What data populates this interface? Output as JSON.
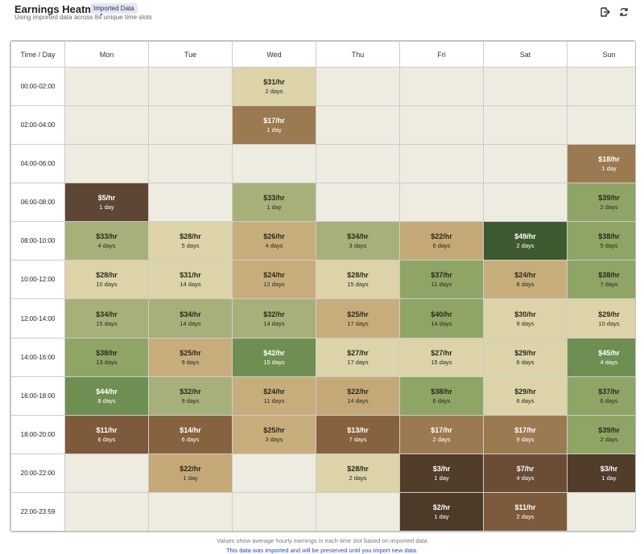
{
  "header": {
    "title": "Earnings Heatmap",
    "badge": "Imported Data",
    "subtitle": "Using imported data across 84 unique time slots"
  },
  "table": {
    "columns": [
      "Time / Day",
      "Mon",
      "Tue",
      "Wed",
      "Thu",
      "Fri",
      "Sat",
      "Sun"
    ],
    "rows": [
      {
        "time": "00:00-02:00",
        "cells": [
          null,
          null,
          {
            "rate": "$31/hr",
            "days": "2 days",
            "color": "#ddd3a8"
          },
          null,
          null,
          null,
          null
        ]
      },
      {
        "time": "02:00-04:00",
        "cells": [
          null,
          null,
          {
            "rate": "$17/hr",
            "days": "1 day",
            "color": "#9b7a52"
          },
          null,
          null,
          null,
          null
        ]
      },
      {
        "time": "04:00-06:00",
        "cells": [
          null,
          null,
          null,
          null,
          null,
          null,
          {
            "rate": "$18/hr",
            "days": "1 day",
            "color": "#9b7a52"
          }
        ]
      },
      {
        "time": "06:00-08:00",
        "cells": [
          {
            "rate": "$5/hr",
            "days": "1 day",
            "color": "#5e4634"
          },
          null,
          {
            "rate": "$33/hr",
            "days": "1 day",
            "color": "#a8b07a"
          },
          null,
          null,
          null,
          {
            "rate": "$39/hr",
            "days": "2 days",
            "color": "#8ea565"
          }
        ]
      },
      {
        "time": "08:00-10:00",
        "cells": [
          {
            "rate": "$33/hr",
            "days": "4 days",
            "color": "#a8b07a"
          },
          {
            "rate": "$28/hr",
            "days": "5 days",
            "color": "#ddd3a8"
          },
          {
            "rate": "$26/hr",
            "days": "4 days",
            "color": "#c8ad7c"
          },
          {
            "rate": "$34/hr",
            "days": "3 days",
            "color": "#a8b07a"
          },
          {
            "rate": "$22/hr",
            "days": "6 days",
            "color": "#c4a878"
          },
          {
            "rate": "$49/hr",
            "days": "2 days",
            "color": "#3e5a30"
          },
          {
            "rate": "$38/hr",
            "days": "5 days",
            "color": "#8ea565"
          }
        ]
      },
      {
        "time": "10:00-12:00",
        "cells": [
          {
            "rate": "$28/hr",
            "days": "10 days",
            "color": "#ddd3a8"
          },
          {
            "rate": "$31/hr",
            "days": "14 days",
            "color": "#ddd3a8"
          },
          {
            "rate": "$24/hr",
            "days": "12 days",
            "color": "#c8ad7c"
          },
          {
            "rate": "$28/hr",
            "days": "15 days",
            "color": "#ddd3a8"
          },
          {
            "rate": "$37/hr",
            "days": "11 days",
            "color": "#8ea565"
          },
          {
            "rate": "$24/hr",
            "days": "8 days",
            "color": "#c8ad7c"
          },
          {
            "rate": "$38/hr",
            "days": "7 days",
            "color": "#8ea565"
          }
        ]
      },
      {
        "time": "12:00-14:00",
        "cells": [
          {
            "rate": "$34/hr",
            "days": "15 days",
            "color": "#a8b07a"
          },
          {
            "rate": "$34/hr",
            "days": "14 days",
            "color": "#a8b07a"
          },
          {
            "rate": "$32/hr",
            "days": "14 days",
            "color": "#a8b07a"
          },
          {
            "rate": "$25/hr",
            "days": "17 days",
            "color": "#c8ad7c"
          },
          {
            "rate": "$40/hr",
            "days": "14 days",
            "color": "#8ea565"
          },
          {
            "rate": "$30/hr",
            "days": "9 days",
            "color": "#ddd3a8"
          },
          {
            "rate": "$29/hr",
            "days": "10 days",
            "color": "#ddd3a8"
          }
        ]
      },
      {
        "time": "14:00-16:00",
        "cells": [
          {
            "rate": "$38/hr",
            "days": "13 days",
            "color": "#8ea565"
          },
          {
            "rate": "$25/hr",
            "days": "9 days",
            "color": "#c8ad7c"
          },
          {
            "rate": "$42/hr",
            "days": "15 days",
            "color": "#6f8f52"
          },
          {
            "rate": "$27/hr",
            "days": "17 days",
            "color": "#ddd3a8"
          },
          {
            "rate": "$27/hr",
            "days": "15 days",
            "color": "#ddd3a8"
          },
          {
            "rate": "$29/hr",
            "days": "6 days",
            "color": "#ddd3a8"
          },
          {
            "rate": "$45/hr",
            "days": "4 days",
            "color": "#6f8f52"
          }
        ]
      },
      {
        "time": "16:00-18:00",
        "cells": [
          {
            "rate": "$44/hr",
            "days": "8 days",
            "color": "#6f8f52"
          },
          {
            "rate": "$32/hr",
            "days": "9 days",
            "color": "#a8b07a"
          },
          {
            "rate": "$24/hr",
            "days": "11 days",
            "color": "#c8ad7c"
          },
          {
            "rate": "$22/hr",
            "days": "14 days",
            "color": "#c4a878"
          },
          {
            "rate": "$38/hr",
            "days": "6 days",
            "color": "#8ea565"
          },
          {
            "rate": "$29/hr",
            "days": "6 days",
            "color": "#ddd3a8"
          },
          {
            "rate": "$37/hr",
            "days": "6 days",
            "color": "#8ea565"
          }
        ]
      },
      {
        "time": "18:00-20:00",
        "cells": [
          {
            "rate": "$11/hr",
            "days": "6 days",
            "color": "#7d5a3c"
          },
          {
            "rate": "$14/hr",
            "days": "6 days",
            "color": "#86623f"
          },
          {
            "rate": "$25/hr",
            "days": "3 days",
            "color": "#c8ad7c"
          },
          {
            "rate": "$13/hr",
            "days": "7 days",
            "color": "#86623f"
          },
          {
            "rate": "$17/hr",
            "days": "2 days",
            "color": "#9b7a52"
          },
          {
            "rate": "$17/hr",
            "days": "9 days",
            "color": "#9b7a52"
          },
          {
            "rate": "$39/hr",
            "days": "2 days",
            "color": "#8ea565"
          }
        ]
      },
      {
        "time": "20:00-22:00",
        "cells": [
          null,
          {
            "rate": "$22/hr",
            "days": "1 day",
            "color": "#c4a878"
          },
          null,
          {
            "rate": "$28/hr",
            "days": "2 days",
            "color": "#ddd3a8"
          },
          {
            "rate": "$3/hr",
            "days": "1 day",
            "color": "#523c2a"
          },
          {
            "rate": "$7/hr",
            "days": "4 days",
            "color": "#6b4c34"
          },
          {
            "rate": "$3/hr",
            "days": "1 day",
            "color": "#523c2a"
          }
        ]
      },
      {
        "time": "22:00-23:59",
        "cells": [
          null,
          null,
          null,
          null,
          {
            "rate": "$2/hr",
            "days": "1 day",
            "color": "#4e3a28"
          },
          {
            "rate": "$11/hr",
            "days": "2 days",
            "color": "#7d5a3c"
          },
          null
        ]
      }
    ]
  },
  "footer": {
    "note": "Values show average hourly earnings in each time slot based on imported data",
    "import_note": "This data was imported and will be preserved until you import new data."
  }
}
